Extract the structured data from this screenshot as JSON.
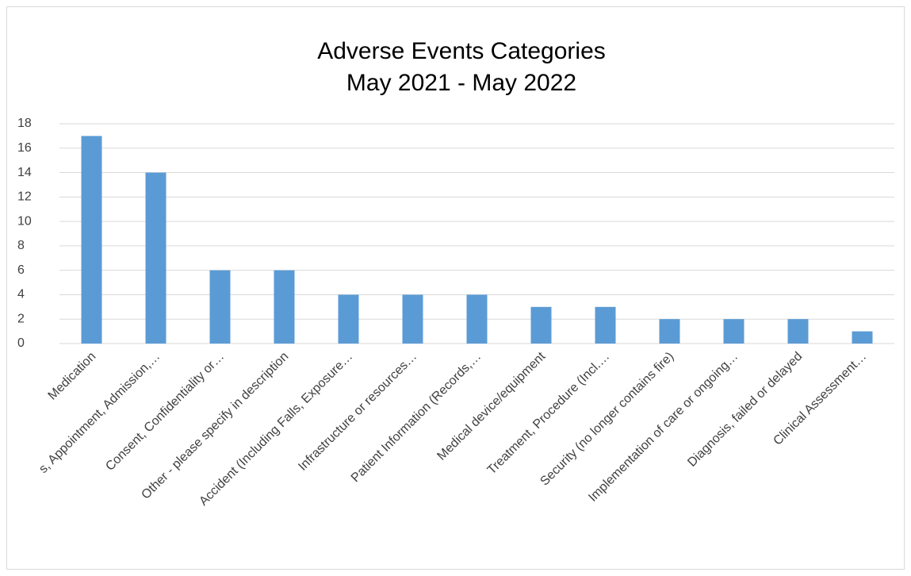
{
  "chart_data": {
    "type": "bar",
    "title": "Adverse Events Categories",
    "subtitle": "May 2021 - May 2022",
    "categories": [
      "Medication",
      "s, Appointment, Admission,…",
      "Consent, Confidentiality or…",
      "Other - please specify in description",
      "Accident (Including Falls, Exposure…",
      "Infrastructure or resources…",
      "Patient Information (Records,…",
      "Medical device/equipment",
      "Treatment, Procedure (Incl.…",
      "Security (no longer contains fire)",
      "Implementation of care or ongoing…",
      "Diagnosis, failed or delayed",
      "Clinical Assessment…"
    ],
    "values": [
      17,
      14,
      6,
      6,
      4,
      4,
      4,
      3,
      3,
      2,
      2,
      2,
      1
    ],
    "color": "#5b9bd5",
    "ylim": [
      0,
      18
    ],
    "yticks": [
      0,
      2,
      4,
      6,
      8,
      10,
      12,
      14,
      16,
      18
    ],
    "grid": true
  }
}
